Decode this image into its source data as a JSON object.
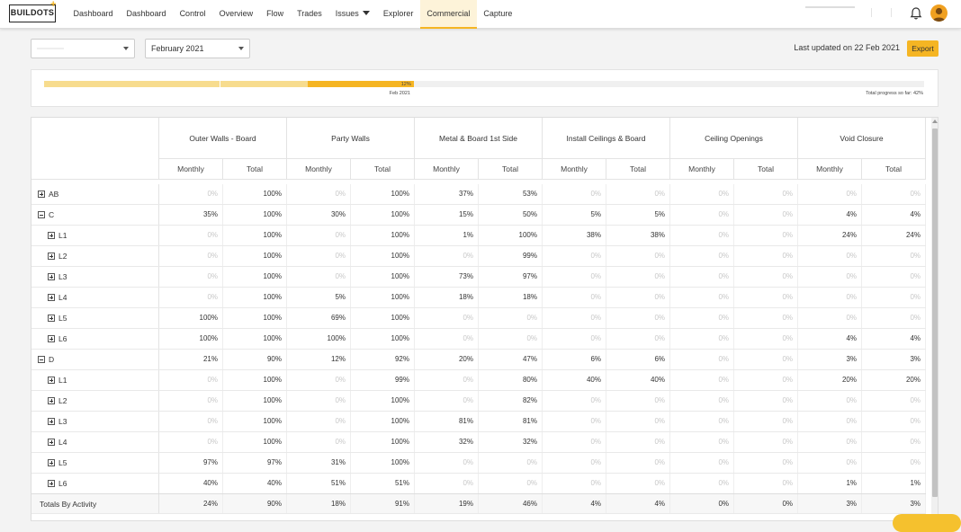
{
  "app": {
    "logo_text": "BUILDOTS",
    "nav": [
      "Dashboard",
      "Dashboard",
      "Control",
      "Overview",
      "Flow",
      "Trades",
      "Issues",
      "Explorer",
      "Commercial",
      "Capture"
    ],
    "active_nav": "Commercial",
    "icons": {
      "logo": "buildots-logo-icon",
      "notifications": "bell-icon",
      "user": "avatar-icon",
      "issues_dropdown": "chevron-down-icon"
    },
    "colors": {
      "accent": "#f5b523",
      "accent_light": "#f7dc8e",
      "zero_text": "#c8c8c8"
    }
  },
  "filters": {
    "project_select_value": "",
    "month_select_value": "February 2021",
    "last_updated": "Last updated on 22 Feb 2021",
    "export_label": "Export"
  },
  "progress": {
    "current_percent_label": "12%",
    "current_month_label": "Feb 2021",
    "total_label": "Total progress so far: 42%",
    "total_progress": 0.42,
    "segments": [
      0.08,
      0.12,
      0.1,
      0.12
    ]
  },
  "table": {
    "activities": [
      "Outer Walls - Board",
      "Party Walls",
      "Metal & Board 1st Side",
      "Install Ceilings & Board",
      "Ceiling Openings",
      "Void Closure"
    ],
    "sub_headers": [
      "Monthly",
      "Total"
    ],
    "sortable": [
      false,
      true,
      true,
      true,
      false,
      true
    ],
    "rows": [
      {
        "name": "AB",
        "level": 0,
        "expander": "plus",
        "values": [
          "0%",
          "100%",
          "0%",
          "100%",
          "37%",
          "53%",
          "0%",
          "0%",
          "0%",
          "0%",
          "0%",
          "0%"
        ]
      },
      {
        "name": "C",
        "level": 0,
        "expander": "minus",
        "values": [
          "35%",
          "100%",
          "30%",
          "100%",
          "15%",
          "50%",
          "5%",
          "5%",
          "0%",
          "0%",
          "4%",
          "4%"
        ]
      },
      {
        "name": "L1",
        "level": 1,
        "expander": "plus",
        "values": [
          "0%",
          "100%",
          "0%",
          "100%",
          "1%",
          "100%",
          "38%",
          "38%",
          "0%",
          "0%",
          "24%",
          "24%"
        ]
      },
      {
        "name": "L2",
        "level": 1,
        "expander": "plus",
        "values": [
          "0%",
          "100%",
          "0%",
          "100%",
          "0%",
          "99%",
          "0%",
          "0%",
          "0%",
          "0%",
          "0%",
          "0%"
        ]
      },
      {
        "name": "L3",
        "level": 1,
        "expander": "plus",
        "values": [
          "0%",
          "100%",
          "0%",
          "100%",
          "73%",
          "97%",
          "0%",
          "0%",
          "0%",
          "0%",
          "0%",
          "0%"
        ]
      },
      {
        "name": "L4",
        "level": 1,
        "expander": "plus",
        "values": [
          "0%",
          "100%",
          "5%",
          "100%",
          "18%",
          "18%",
          "0%",
          "0%",
          "0%",
          "0%",
          "0%",
          "0%"
        ]
      },
      {
        "name": "L5",
        "level": 1,
        "expander": "plus",
        "values": [
          "100%",
          "100%",
          "69%",
          "100%",
          "0%",
          "0%",
          "0%",
          "0%",
          "0%",
          "0%",
          "0%",
          "0%"
        ]
      },
      {
        "name": "L6",
        "level": 1,
        "expander": "plus",
        "values": [
          "100%",
          "100%",
          "100%",
          "100%",
          "0%",
          "0%",
          "0%",
          "0%",
          "0%",
          "0%",
          "4%",
          "4%"
        ]
      },
      {
        "name": "D",
        "level": 0,
        "expander": "minus",
        "values": [
          "21%",
          "90%",
          "12%",
          "92%",
          "20%",
          "47%",
          "6%",
          "6%",
          "0%",
          "0%",
          "3%",
          "3%"
        ]
      },
      {
        "name": "L1",
        "level": 1,
        "expander": "plus",
        "values": [
          "0%",
          "100%",
          "0%",
          "99%",
          "0%",
          "80%",
          "40%",
          "40%",
          "0%",
          "0%",
          "20%",
          "20%"
        ]
      },
      {
        "name": "L2",
        "level": 1,
        "expander": "plus",
        "values": [
          "0%",
          "100%",
          "0%",
          "100%",
          "0%",
          "82%",
          "0%",
          "0%",
          "0%",
          "0%",
          "0%",
          "0%"
        ]
      },
      {
        "name": "L3",
        "level": 1,
        "expander": "plus",
        "values": [
          "0%",
          "100%",
          "0%",
          "100%",
          "81%",
          "81%",
          "0%",
          "0%",
          "0%",
          "0%",
          "0%",
          "0%"
        ]
      },
      {
        "name": "L4",
        "level": 1,
        "expander": "plus",
        "values": [
          "0%",
          "100%",
          "0%",
          "100%",
          "32%",
          "32%",
          "0%",
          "0%",
          "0%",
          "0%",
          "0%",
          "0%"
        ]
      },
      {
        "name": "L5",
        "level": 1,
        "expander": "plus",
        "values": [
          "97%",
          "97%",
          "31%",
          "100%",
          "0%",
          "0%",
          "0%",
          "0%",
          "0%",
          "0%",
          "0%",
          "0%"
        ]
      },
      {
        "name": "L6",
        "level": 1,
        "expander": "plus",
        "values": [
          "40%",
          "40%",
          "51%",
          "51%",
          "0%",
          "0%",
          "0%",
          "0%",
          "0%",
          "0%",
          "1%",
          "1%"
        ]
      }
    ],
    "totals": {
      "name": "Totals By Activity",
      "values": [
        "24%",
        "90%",
        "18%",
        "91%",
        "19%",
        "46%",
        "4%",
        "4%",
        "0%",
        "0%",
        "3%",
        "3%"
      ]
    }
  }
}
